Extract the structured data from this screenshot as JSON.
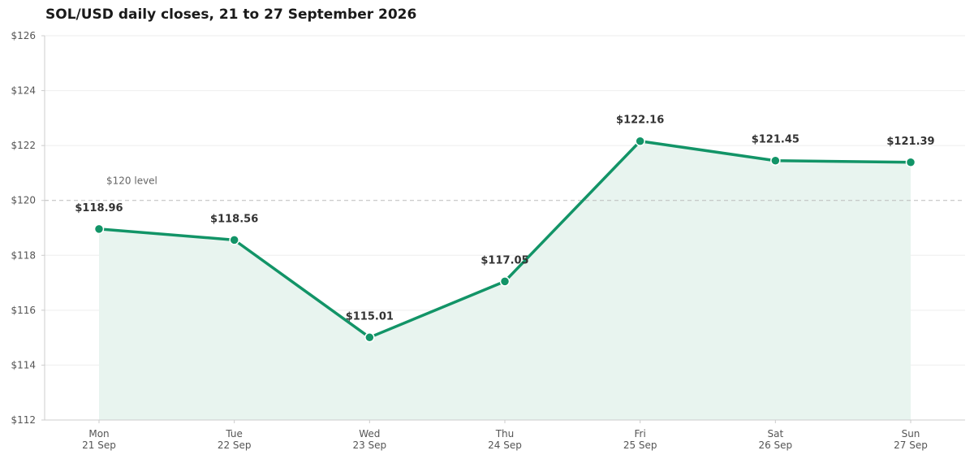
{
  "chart_data": {
    "type": "line",
    "title": "SOL/USD daily closes, 21 to 27 September 2026",
    "xlabel": "",
    "ylabel": "",
    "categories": [
      [
        "Mon",
        "21 Sep"
      ],
      [
        "Tue",
        "22 Sep"
      ],
      [
        "Wed",
        "23 Sep"
      ],
      [
        "Thu",
        "24 Sep"
      ],
      [
        "Fri",
        "25 Sep"
      ],
      [
        "Sat",
        "26 Sep"
      ],
      [
        "Sun",
        "27 Sep"
      ]
    ],
    "series": [
      {
        "values": [
          118.96,
          118.56,
          115.01,
          117.05,
          122.16,
          121.45,
          121.39
        ],
        "labels": [
          "$118.96",
          "$118.56",
          "$115.01",
          "$117.05",
          "$122.16",
          "$121.45",
          "$121.39"
        ]
      }
    ],
    "ylim": [
      112,
      126
    ],
    "y_ticks": [
      112,
      114,
      116,
      118,
      120,
      122,
      124,
      126
    ],
    "y_tick_labels": [
      "$112",
      "$114",
      "$116",
      "$118",
      "$120",
      "$122",
      "$124",
      "$126"
    ],
    "reference_line": {
      "value": 120,
      "label": "$120 level"
    },
    "grid": true,
    "colors": {
      "line": "#129467",
      "area": "#e8f4ef",
      "grid": "#eeeeee",
      "reference": "#bbbbbb",
      "axis": "#cccccc"
    }
  }
}
